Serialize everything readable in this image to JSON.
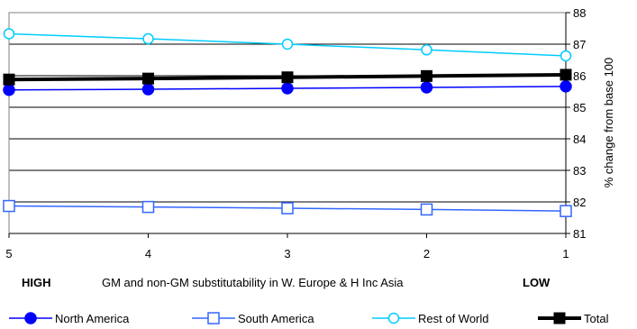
{
  "chart_data": {
    "type": "line",
    "x": [
      5,
      4,
      3,
      2,
      1
    ],
    "x_tick_labels": [
      "5",
      "4",
      "3",
      "2",
      "1"
    ],
    "xlabel": "GM and non-GM substitutability in W. Europe &  H Inc Asia",
    "xlabel_left": "HIGH",
    "xlabel_right": "LOW",
    "ylabel": "% change from base 100",
    "ylim": [
      81,
      88
    ],
    "yticks": [
      81,
      82,
      83,
      84,
      85,
      86,
      87,
      88
    ],
    "y_axis_side": "right",
    "grid": "horizontal",
    "legend_position": "bottom",
    "series": [
      {
        "name": "North America",
        "values": [
          85.55,
          85.57,
          85.6,
          85.63,
          85.66
        ],
        "color": "#0000ff",
        "marker": "filled-circle"
      },
      {
        "name": "South America",
        "values": [
          81.87,
          81.84,
          81.8,
          81.76,
          81.71
        ],
        "color": "#3366ff",
        "marker": "open-square"
      },
      {
        "name": "Rest of World",
        "values": [
          87.33,
          87.17,
          87.0,
          86.82,
          86.63
        ],
        "color": "#00ccff",
        "marker": "open-circle"
      },
      {
        "name": "Total",
        "values": [
          85.88,
          85.91,
          85.95,
          85.99,
          86.03
        ],
        "color": "#000000",
        "marker": "filled-square"
      }
    ]
  }
}
